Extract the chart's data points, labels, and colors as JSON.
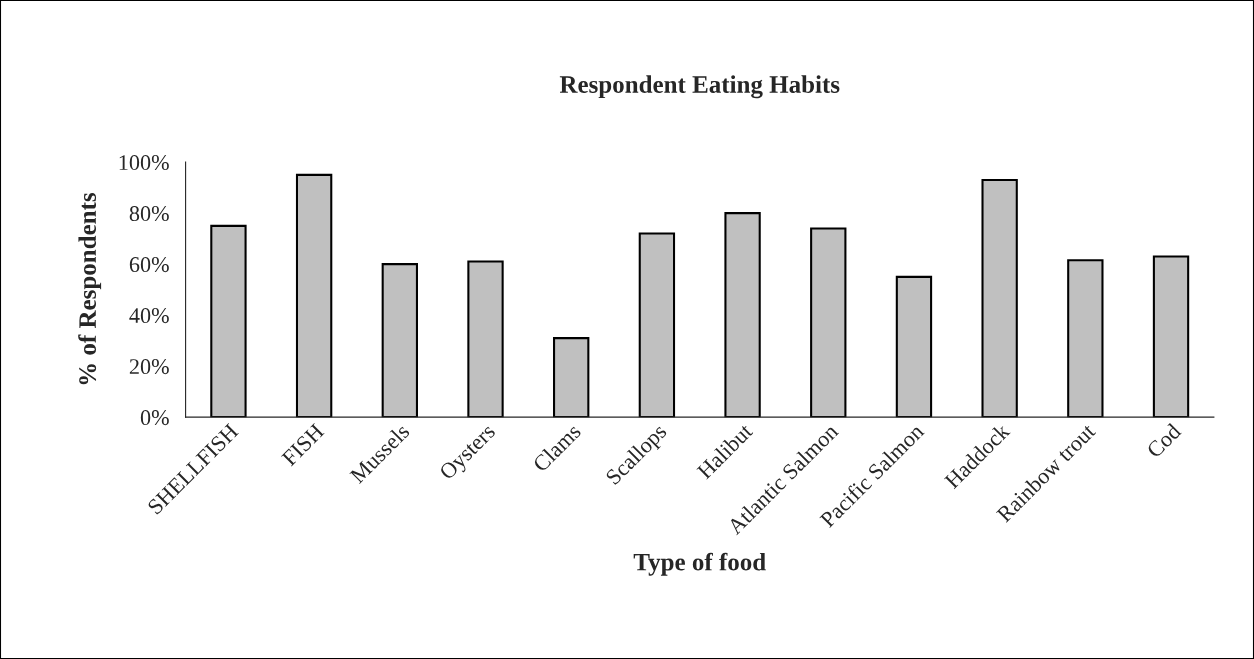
{
  "chart_data": {
    "type": "bar",
    "title": "Respondent Eating Habits",
    "xlabel": "Type of food",
    "ylabel": "% of Respondents",
    "categories": [
      "SHELLFISH",
      "FISH",
      "Mussels",
      "Oysters",
      "Clams",
      "Scallops",
      "Halibut",
      "Atlantic Salmon",
      "Pacific Salmon",
      "Haddock",
      "Rainbow trout",
      "Cod"
    ],
    "values": [
      75,
      95,
      60,
      61,
      31,
      72,
      80,
      74,
      55,
      93,
      61.5,
      63
    ],
    "color": "#c0c0c0",
    "ylim": [
      0,
      100
    ],
    "yticks": [
      {
        "value": 0,
        "label": "0%"
      },
      {
        "value": 20,
        "label": "20%"
      },
      {
        "value": 40,
        "label": "40%"
      },
      {
        "value": 60,
        "label": "60%"
      },
      {
        "value": 80,
        "label": "80%"
      },
      {
        "value": 100,
        "label": "100%"
      }
    ],
    "grid": false
  }
}
